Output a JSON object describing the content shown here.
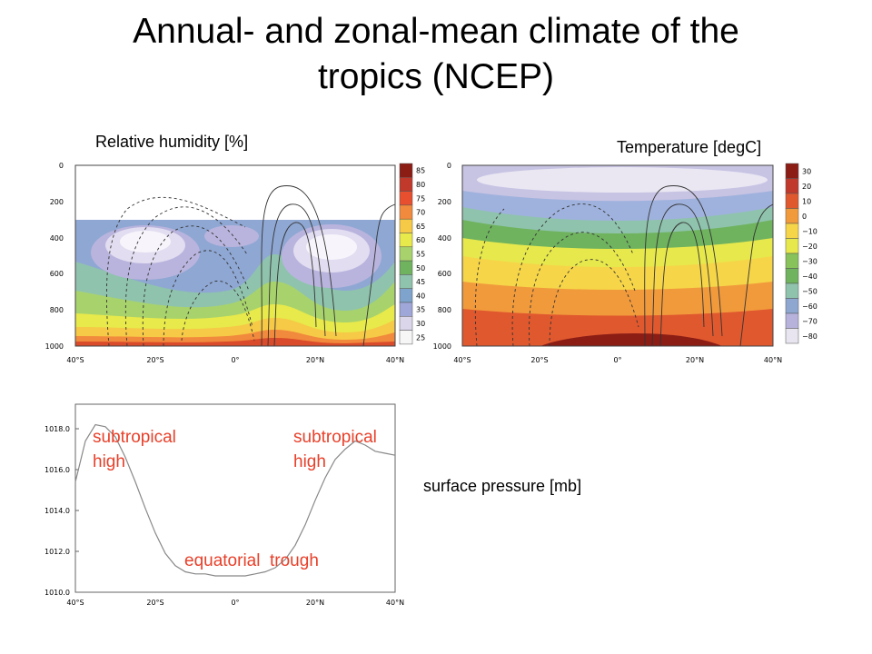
{
  "title_line1": "Annual- and zonal-mean climate of the",
  "title_line2": "tropics (NCEP)",
  "labels": {
    "rh": "Relative humidity [%]",
    "temp": "Temperature [degC]",
    "sp": "surface pressure [mb]"
  },
  "colors": {
    "annotation": "#e8402a",
    "curve": "#888888"
  },
  "chart_data": [
    {
      "type": "heatmap",
      "title": "Relative humidity [%]",
      "x_ticks": [
        "40°S",
        "20°S",
        "0°",
        "20°N",
        "40°N"
      ],
      "x_range": [
        -40,
        40
      ],
      "y_ticks": [
        "0",
        "200",
        "400",
        "600",
        "800",
        "1000"
      ],
      "y_range": [
        1000,
        0
      ],
      "colorbar": [
        85,
        80,
        75,
        70,
        65,
        60,
        55,
        50,
        45,
        40,
        35,
        30,
        25
      ],
      "colorbar_colors": [
        "#8b1d15",
        "#c0392b",
        "#e84f2e",
        "#f18a3c",
        "#f6c946",
        "#e8e94a",
        "#a8d36c",
        "#6fb35f",
        "#8fc3ad",
        "#7ea3cc",
        "#9fa7d8",
        "#dcd6ea",
        "#f6f6f6"
      ],
      "contour_lines": [
        "-1",
        "-3",
        "-5",
        "-7",
        "-9",
        "-11",
        "1",
        "3",
        "5"
      ],
      "data_note_levels": [
        "85",
        "80",
        "75",
        "70",
        "65",
        "60",
        "55",
        "50",
        "45",
        "40",
        "35",
        "30",
        "25"
      ]
    },
    {
      "type": "heatmap",
      "title": "Temperature [degC]",
      "x_ticks": [
        "40°S",
        "20°S",
        "0°",
        "20°N",
        "40°N"
      ],
      "x_range": [
        -40,
        40
      ],
      "y_ticks": [
        "0",
        "200",
        "400",
        "600",
        "800",
        "1000"
      ],
      "y_range": [
        1000,
        0
      ],
      "colorbar": [
        30,
        20,
        10,
        0,
        -10,
        -20,
        -30,
        -40,
        -50,
        -60,
        -70,
        -80
      ],
      "colorbar_colors": [
        "#8b1d15",
        "#c0392b",
        "#e0582e",
        "#f19a3c",
        "#f6d548",
        "#e7e84c",
        "#88c25a",
        "#6fb35f",
        "#8fc3ad",
        "#8ea7d0",
        "#b7b2dc",
        "#e8e4f0",
        "#f6f6f6"
      ]
    },
    {
      "type": "line",
      "title": "surface pressure [mb]",
      "x_ticks": [
        "40°S",
        "20°S",
        "0°",
        "20°N",
        "40°N"
      ],
      "x_range": [
        -40,
        40
      ],
      "y_ticks": [
        "1010.0",
        "1012.0",
        "1014.0",
        "1016.0",
        "1018.0"
      ],
      "y_range": [
        1010,
        1019.2
      ],
      "x": [
        -40,
        -37.5,
        -35,
        -32.5,
        -30,
        -27.5,
        -25,
        -22.5,
        -20,
        -17.5,
        -15,
        -12.5,
        -10,
        -7.5,
        -5,
        -2.5,
        0,
        2.5,
        5,
        7.5,
        10,
        12.5,
        15,
        17.5,
        20,
        22.5,
        25,
        27.5,
        30,
        32.5,
        35,
        37.5,
        40
      ],
      "y": [
        1015.4,
        1017.4,
        1018.2,
        1018.1,
        1017.6,
        1016.6,
        1015.4,
        1014.1,
        1012.9,
        1011.9,
        1011.3,
        1011.0,
        1010.9,
        1010.9,
        1010.8,
        1010.8,
        1010.8,
        1010.8,
        1010.9,
        1011.0,
        1011.2,
        1011.6,
        1012.3,
        1013.3,
        1014.5,
        1015.6,
        1016.5,
        1017.0,
        1017.4,
        1017.2,
        1016.9,
        1016.8,
        1016.7
      ],
      "annotations": [
        {
          "text_line1": "subtropical",
          "text_line2": "high"
        },
        {
          "text_line1": "subtropical",
          "text_line2": "high"
        },
        {
          "text_line1": "equatorial  trough"
        }
      ]
    }
  ]
}
